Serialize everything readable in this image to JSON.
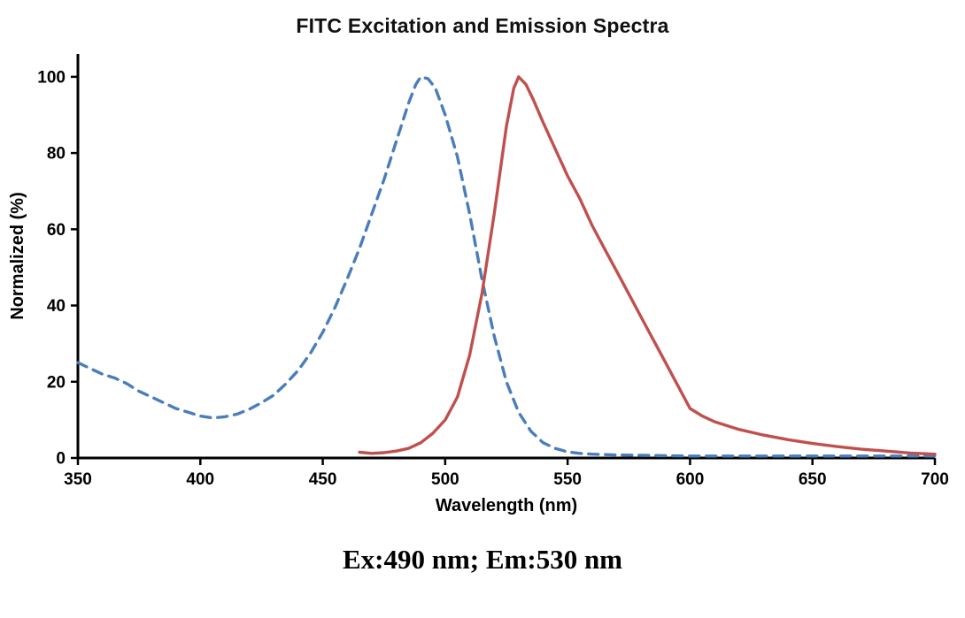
{
  "caption": "Ex:490 nm; Em:530 nm",
  "chart_data": {
    "type": "line",
    "title": "FITC Excitation and Emission Spectra",
    "xlabel": "Wavelength (nm)",
    "ylabel": "Normalized (%)",
    "xlim": [
      350,
      700
    ],
    "ylim": [
      0,
      100
    ],
    "x_ticks": [
      350,
      400,
      450,
      500,
      550,
      600,
      650,
      700
    ],
    "y_ticks": [
      0,
      20,
      40,
      60,
      80,
      100
    ],
    "grid": false,
    "legend": "none",
    "colors": {
      "excitation": "#4a7ebb",
      "emission": "#c0504d",
      "axis": "#000000"
    },
    "series": [
      {
        "name": "Excitation",
        "color": "#4a7ebb",
        "style": "dashed",
        "x": [
          350,
          355,
          360,
          365,
          370,
          375,
          380,
          385,
          390,
          395,
          400,
          405,
          410,
          415,
          420,
          425,
          430,
          435,
          440,
          445,
          450,
          455,
          460,
          465,
          470,
          475,
          480,
          485,
          488,
          490,
          493,
          496,
          500,
          505,
          510,
          515,
          520,
          525,
          530,
          535,
          540,
          545,
          550,
          555,
          560,
          570,
          580,
          590,
          600,
          620,
          640,
          660,
          680,
          700
        ],
        "y": [
          25,
          23.5,
          22,
          21,
          19.5,
          17.5,
          16,
          14.5,
          13,
          12,
          11,
          10.5,
          10.8,
          11.5,
          12.8,
          14.5,
          16.5,
          19.5,
          23,
          27.5,
          33,
          39.5,
          47,
          55,
          64,
          73,
          83,
          93,
          98,
          100,
          99.5,
          97,
          90,
          79,
          64,
          47,
          32,
          20,
          12,
          7,
          4,
          2.5,
          1.6,
          1.2,
          1,
          0.8,
          0.7,
          0.6,
          0.5,
          0.5,
          0.5,
          0.5,
          0.5,
          0.5
        ]
      },
      {
        "name": "Emission",
        "color": "#c0504d",
        "style": "solid",
        "x": [
          465,
          470,
          475,
          480,
          485,
          490,
          495,
          500,
          505,
          510,
          515,
          520,
          525,
          528,
          530,
          533,
          536,
          540,
          545,
          550,
          555,
          560,
          565,
          570,
          575,
          580,
          585,
          590,
          595,
          600,
          605,
          610,
          615,
          620,
          630,
          640,
          650,
          660,
          670,
          680,
          690,
          700
        ],
        "y": [
          1.5,
          1.2,
          1.4,
          1.8,
          2.5,
          4,
          6.5,
          10,
          16,
          27,
          43,
          64,
          87,
          97,
          100,
          98,
          94,
          88,
          81,
          74,
          68,
          61,
          55,
          49,
          43,
          37,
          31,
          25,
          19,
          13,
          11,
          9.5,
          8.5,
          7.5,
          6,
          4.8,
          3.8,
          3,
          2.3,
          1.8,
          1.3,
          1
        ]
      }
    ]
  }
}
